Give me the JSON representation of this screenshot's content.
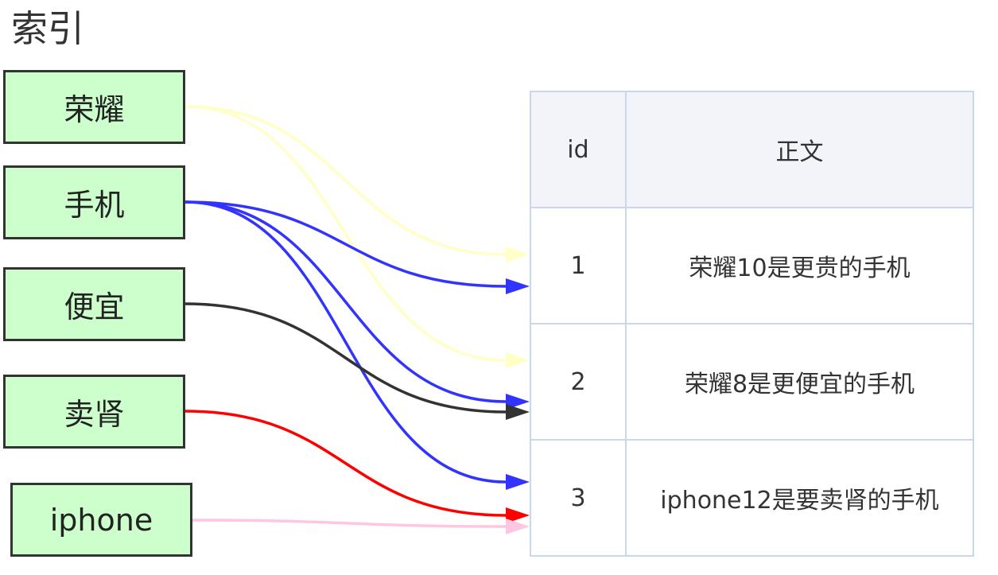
{
  "heading": "索引",
  "index_terms": [
    {
      "term": "荣耀",
      "color": "#ffffc6"
    },
    {
      "term": "手机",
      "color": "#3333ff"
    },
    {
      "term": "便宜",
      "color": "#333333"
    },
    {
      "term": "卖肾",
      "color": "#ff0000"
    },
    {
      "term": "iphone",
      "color": "#ffc6e1"
    }
  ],
  "table": {
    "headers": {
      "id": "id",
      "body": "正文"
    },
    "rows": [
      {
        "id": "1",
        "body": "荣耀10是更贵的手机"
      },
      {
        "id": "2",
        "body": "荣耀8是更便宜的手机"
      },
      {
        "id": "3",
        "body": "iphone12是要卖肾的手机"
      }
    ]
  },
  "links": [
    {
      "term": "荣耀",
      "row_id": "1"
    },
    {
      "term": "荣耀",
      "row_id": "2"
    },
    {
      "term": "手机",
      "row_id": "1"
    },
    {
      "term": "手机",
      "row_id": "2"
    },
    {
      "term": "手机",
      "row_id": "3"
    },
    {
      "term": "便宜",
      "row_id": "2"
    },
    {
      "term": "卖肾",
      "row_id": "3"
    },
    {
      "term": "iphone",
      "row_id": "3"
    }
  ]
}
